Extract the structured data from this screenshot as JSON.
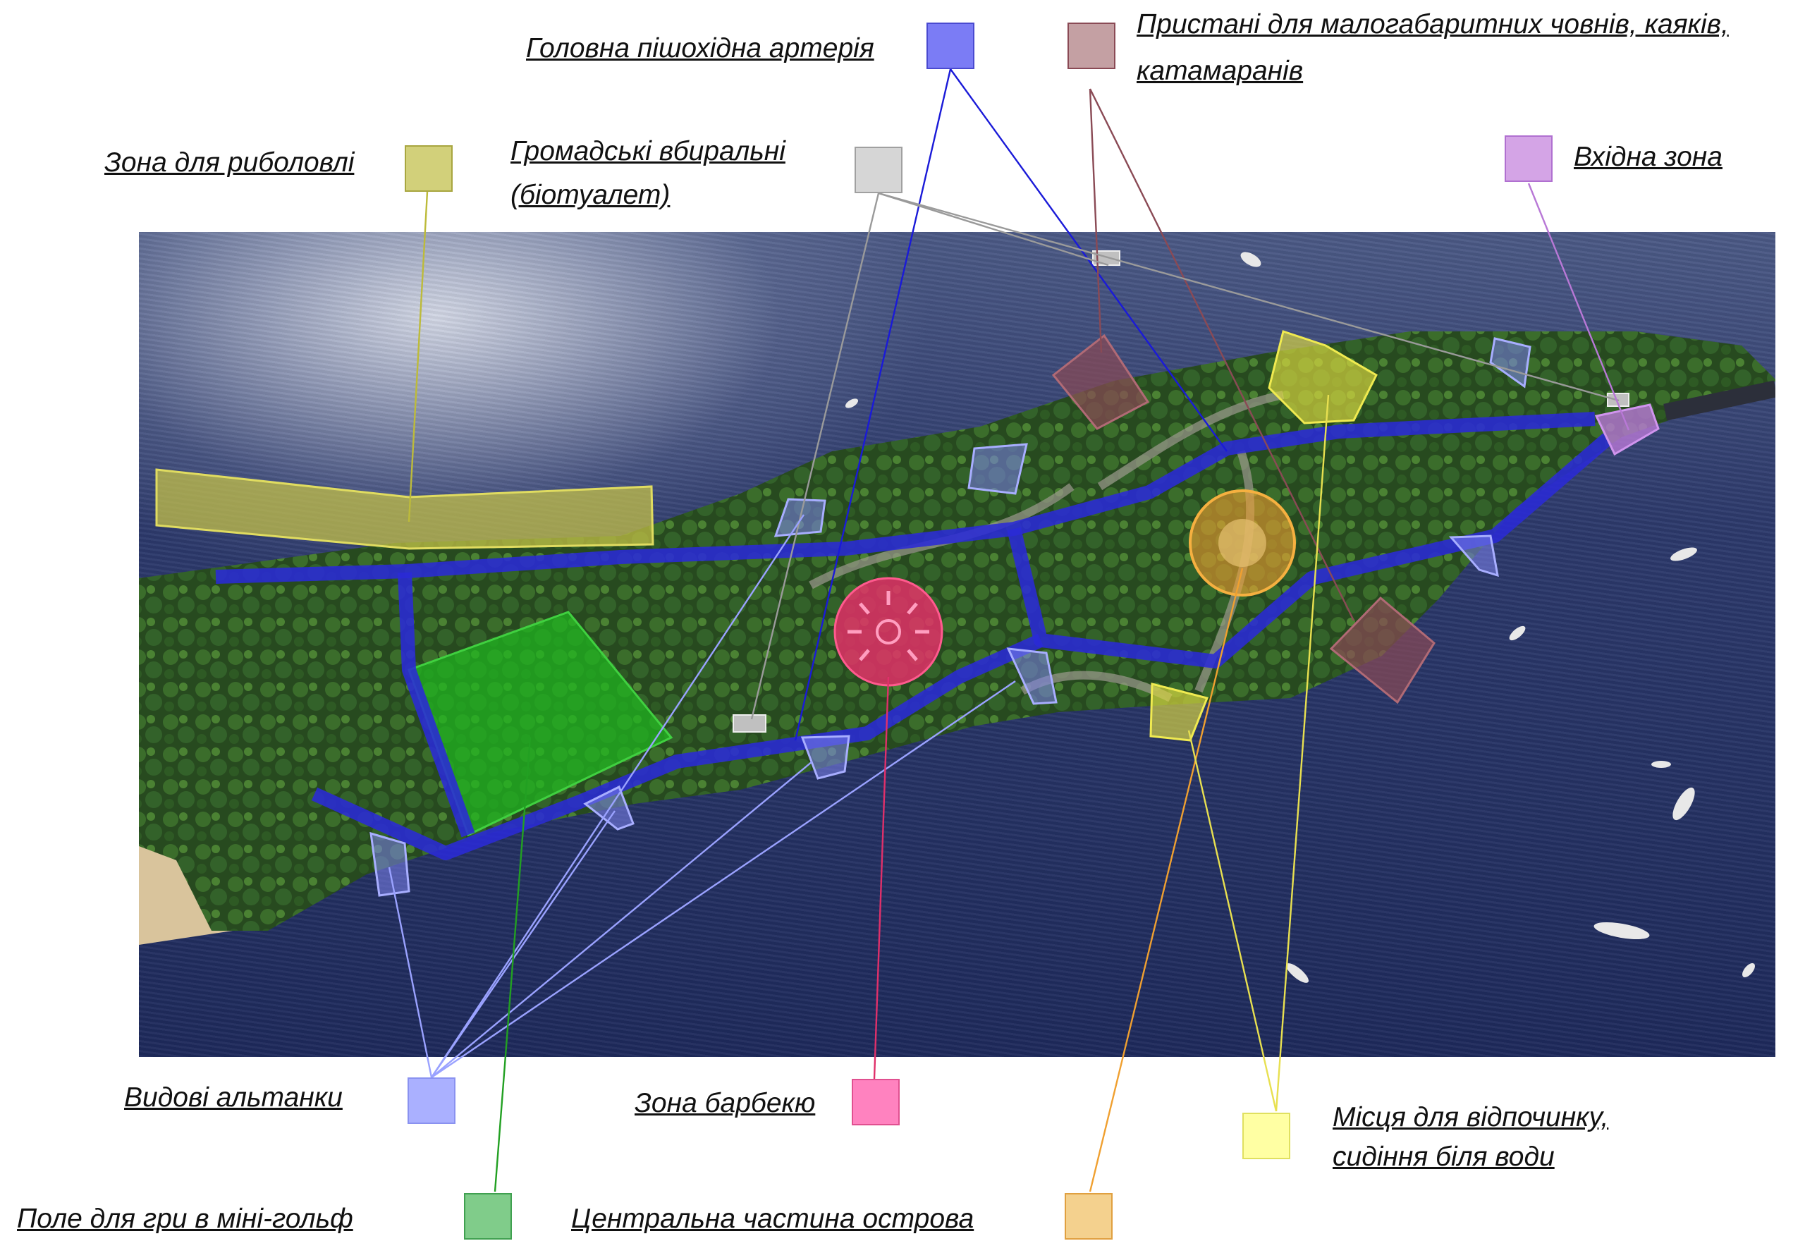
{
  "legend": {
    "pedestrian_artery": {
      "label": "Головна пішохідна артерія",
      "color": "#7b7cf5"
    },
    "boat_piers": {
      "label_line1": "Пристані для малогабаритних човнів, каяків,",
      "label_line2": "катамаранів",
      "color": "#c4a0a3"
    },
    "fishing_zone": {
      "label": "Зона для риболовлі",
      "color": "#d2d07a"
    },
    "public_toilets": {
      "label_line1": "Громадські вбиральні",
      "label_line2": "(біотуалет)",
      "color": "#d6d6d6"
    },
    "entrance_zone": {
      "label": "Вхідна зона",
      "color": "#d4a4e6"
    },
    "viewing_gazebos": {
      "label": "Видові альтанки",
      "color": "#aab0ff"
    },
    "bbq_zone": {
      "label": "Зона барбекю",
      "color": "#ff82bf"
    },
    "seating_areas": {
      "label_line1": "Місця для відпочинку,",
      "label_line2": "сидіння біля води",
      "color": "#ffffa3"
    },
    "mini_golf": {
      "label": "Поле для гри в міні-гольф",
      "color": "#80cc8a"
    },
    "island_center": {
      "label": "Центральна частина острова",
      "color": "#f4d18e"
    }
  },
  "overlay_colors": {
    "path": "#2a2ad6",
    "fishing": "#bdbb3a",
    "golf": "#22b322",
    "bbq": "#e0306a",
    "center": "#f0a030",
    "seating": "#e8e050",
    "pier": "#8a4a55",
    "entrance": "#b878d6",
    "gazebo": "#7d84ee",
    "toilet": "#9a9a9a"
  }
}
